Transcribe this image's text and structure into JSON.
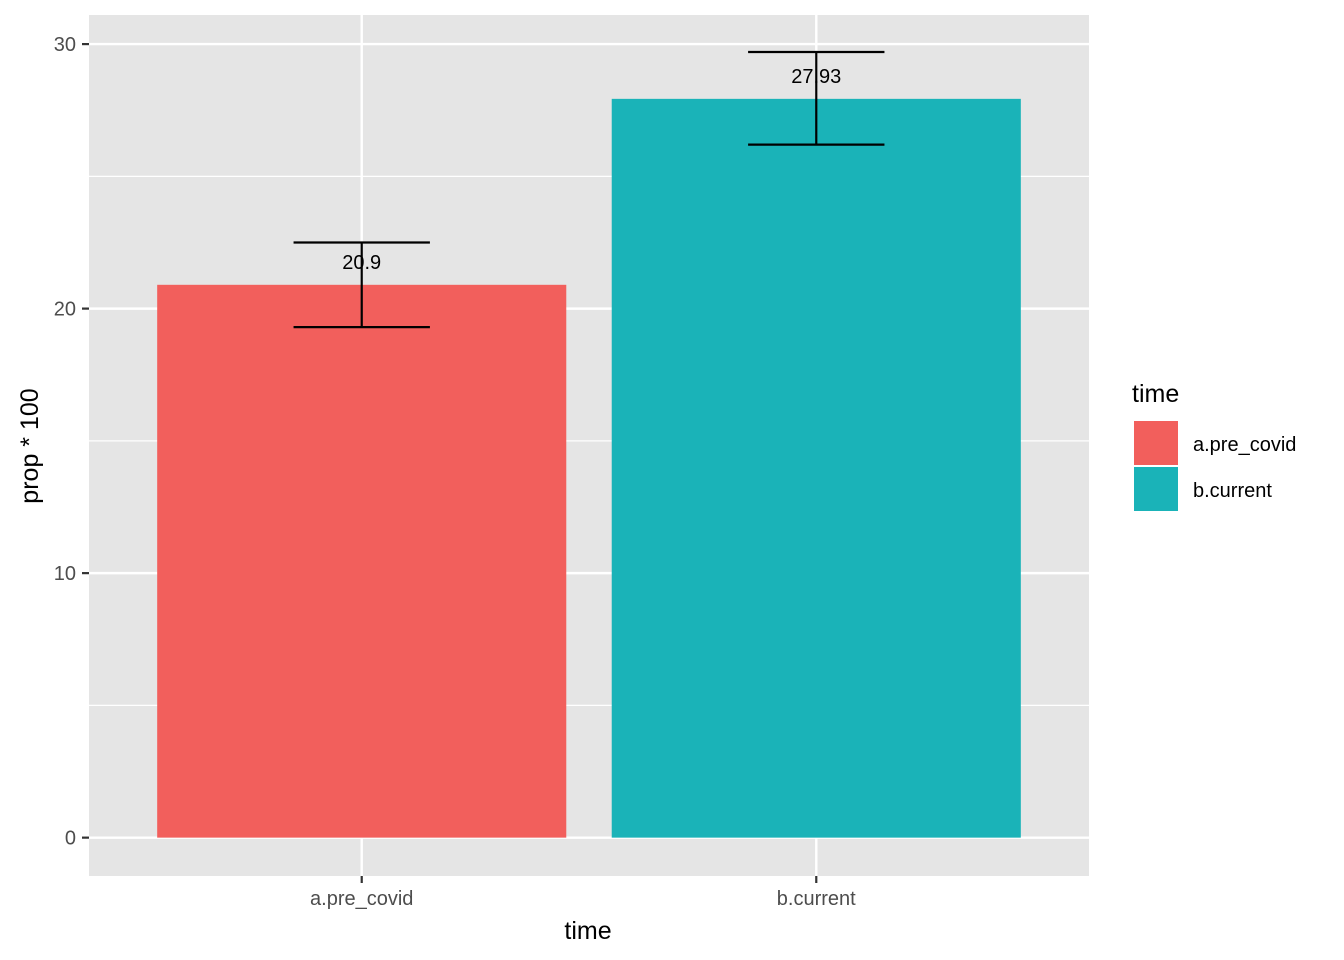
{
  "chart_data": {
    "type": "bar",
    "categories": [
      "a.pre_covid",
      "b.current"
    ],
    "values": [
      20.9,
      27.93
    ],
    "error_bars": [
      {
        "lower": 19.3,
        "upper": 22.5
      },
      {
        "lower": 26.2,
        "upper": 29.7
      }
    ],
    "data_labels": [
      "20.9",
      "27.93"
    ],
    "colors": [
      "#F25F5C",
      "#1AB3B8"
    ],
    "xlabel": "time",
    "ylabel": "prop * 100",
    "ylim": [
      -1.45,
      31.1
    ],
    "yticks": [
      0,
      10,
      20,
      30
    ],
    "ytick_labels": [
      "0",
      "10",
      "20",
      "30"
    ],
    "grid": true,
    "legend": {
      "title": "time",
      "position": "right",
      "entries": [
        "a.pre_covid",
        "b.current"
      ]
    }
  }
}
